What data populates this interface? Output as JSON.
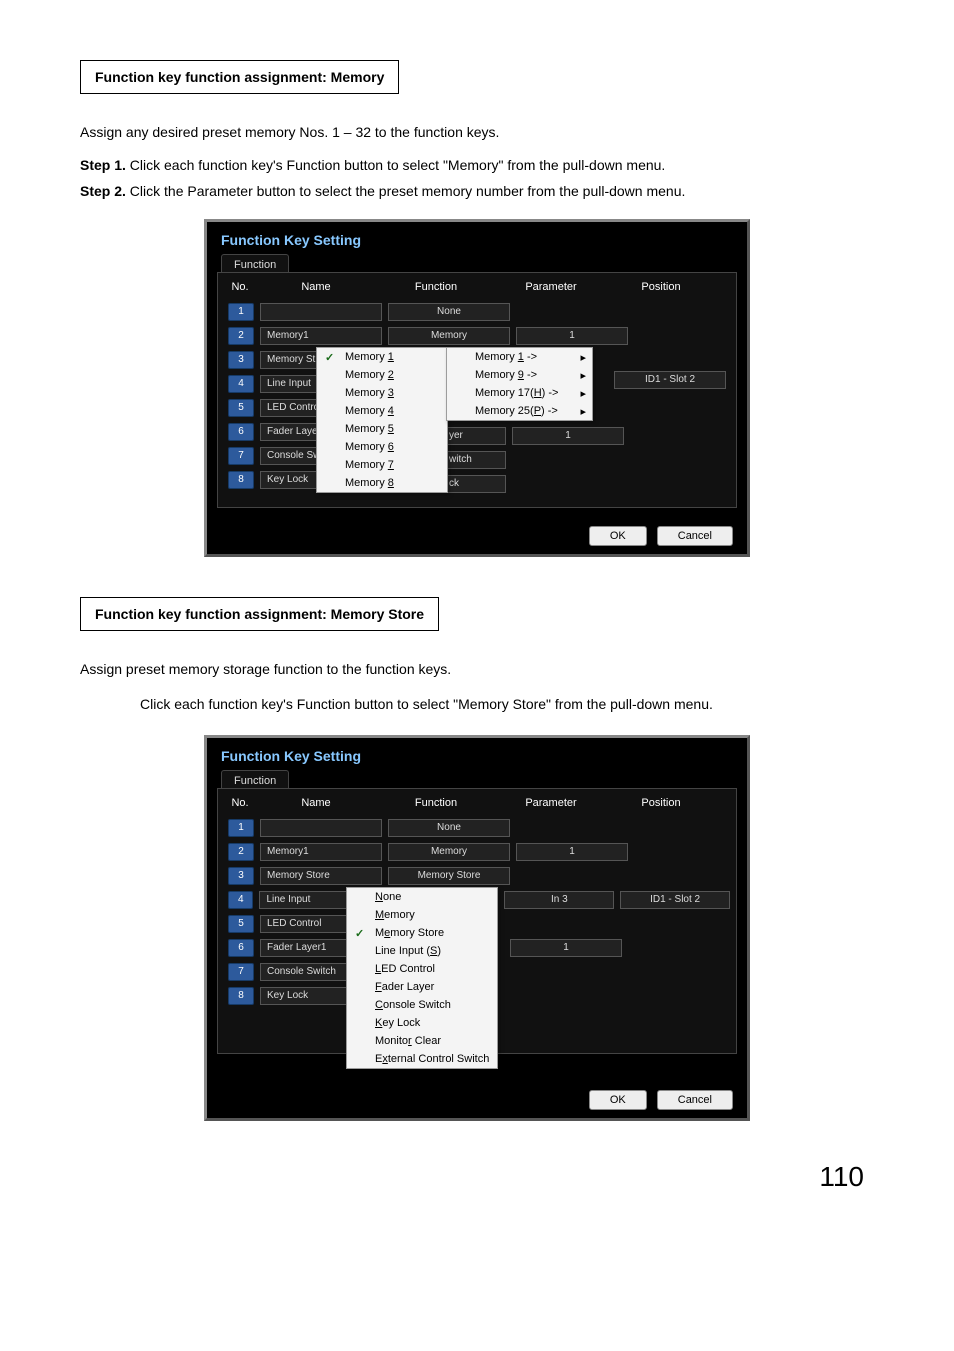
{
  "page_number": "110",
  "section1": {
    "heading": "Function key function assignment: Memory",
    "intro": "Assign any desired preset memory Nos. 1 – 32 to the function keys.",
    "step1_label": "Step 1.",
    "step1_text": "Click each function key's Function button to select \"Memory\" from the pull-down menu.",
    "step2_label": "Step 2.",
    "step2_text": "Click the Parameter button to select the preset memory number from the pull-down menu."
  },
  "section2": {
    "heading": "Function key function assignment: Memory Store",
    "intro": "Assign preset memory storage function to the function keys.",
    "body": "Click each function key's Function button to select \"Memory Store\" from the pull-down menu."
  },
  "window": {
    "title": "Function Key Setting",
    "tab": "Function",
    "headers": {
      "no": "No.",
      "name": "Name",
      "func": "Function",
      "param": "Parameter",
      "pos": "Position"
    },
    "ok": "OK",
    "cancel": "Cancel"
  },
  "shot1": {
    "rows": [
      {
        "n": "1",
        "name": "",
        "func": "None",
        "param": "",
        "pos": ""
      },
      {
        "n": "2",
        "name": "Memory1",
        "func": "Memory",
        "param": "1",
        "pos": ""
      },
      {
        "n": "3",
        "name": "Memory St",
        "func": "",
        "param": "",
        "pos": ""
      },
      {
        "n": "4",
        "name": "Line Input",
        "func": "",
        "param": "",
        "pos": "ID1 - Slot 2"
      },
      {
        "n": "5",
        "name": "LED Contro",
        "func": "",
        "param": "",
        "pos": ""
      },
      {
        "n": "6",
        "name": "Fader Layer",
        "func": "",
        "param": "",
        "pos": ""
      },
      {
        "n": "7",
        "name": "Console Sw",
        "func": "",
        "param": "",
        "pos": ""
      },
      {
        "n": "8",
        "name": "Key Lock",
        "func": "",
        "param": "",
        "pos": ""
      }
    ],
    "dd_memory": [
      "Memory 1",
      "Memory 2",
      "Memory 3",
      "Memory 4",
      "Memory 5",
      "Memory 6",
      "Memory 7",
      "Memory 8"
    ],
    "dd_memory_ul": [
      "1",
      "2",
      "3",
      "4",
      "5",
      "6",
      "7",
      "8"
    ],
    "dd_sub": [
      {
        "label": "Memory ",
        "ul": "1",
        "suffix": " ->",
        "arrow": true
      },
      {
        "label": "Memory ",
        "ul": "9",
        "suffix": " ->",
        "arrow": true
      },
      {
        "label": "Memory 17(",
        "ul": "H",
        "suffix": ") ->",
        "arrow": true
      },
      {
        "label": "Memory 25(",
        "ul": "P",
        "suffix": ") ->",
        "arrow": true
      }
    ],
    "frag_yer": "yer",
    "frag_yer_param": "1",
    "frag_witch": "witch",
    "frag_ck": "ck"
  },
  "shot2": {
    "rows": [
      {
        "n": "1",
        "name": "",
        "func": "None",
        "param": "",
        "pos": ""
      },
      {
        "n": "2",
        "name": "Memory1",
        "func": "Memory",
        "param": "1",
        "pos": ""
      },
      {
        "n": "3",
        "name": "Memory Store",
        "func": "Memory Store",
        "param": "",
        "pos": ""
      },
      {
        "n": "4",
        "name": "Line Input",
        "func": "",
        "param": "In 3",
        "pos": "ID1 - Slot 2"
      },
      {
        "n": "5",
        "name": "LED Control",
        "func": "",
        "param": "",
        "pos": ""
      },
      {
        "n": "6",
        "name": "Fader Layer1",
        "func": "",
        "param": "1",
        "pos": ""
      },
      {
        "n": "7",
        "name": "Console Switch",
        "func": "",
        "param": "",
        "pos": ""
      },
      {
        "n": "8",
        "name": "Key Lock",
        "func": "",
        "param": "",
        "pos": ""
      }
    ],
    "dd_func": [
      {
        "text": "None",
        "ul": "N",
        "checked": false
      },
      {
        "text": "Memory",
        "ul": "M",
        "checked": false
      },
      {
        "text": "Memory Store",
        "ul": "e",
        "checked": true
      },
      {
        "text": "Line Input (S)",
        "ul": "S",
        "checked": false
      },
      {
        "text": "LED Control",
        "ul": "L",
        "checked": false
      },
      {
        "text": "Fader Layer",
        "ul": "F",
        "checked": false
      },
      {
        "text": "Console Switch",
        "ul": "C",
        "checked": false
      },
      {
        "text": "Key Lock",
        "ul": "K",
        "checked": false
      },
      {
        "text": "Monitor Clear",
        "ul": "r",
        "checked": false
      },
      {
        "text": "External Control Switch",
        "ul": "x",
        "checked": false
      }
    ]
  },
  "colors": {
    "badge": "#2d5a9c",
    "title": "#88c8ff",
    "bg": "#111",
    "dd": "#f4f4f4"
  }
}
